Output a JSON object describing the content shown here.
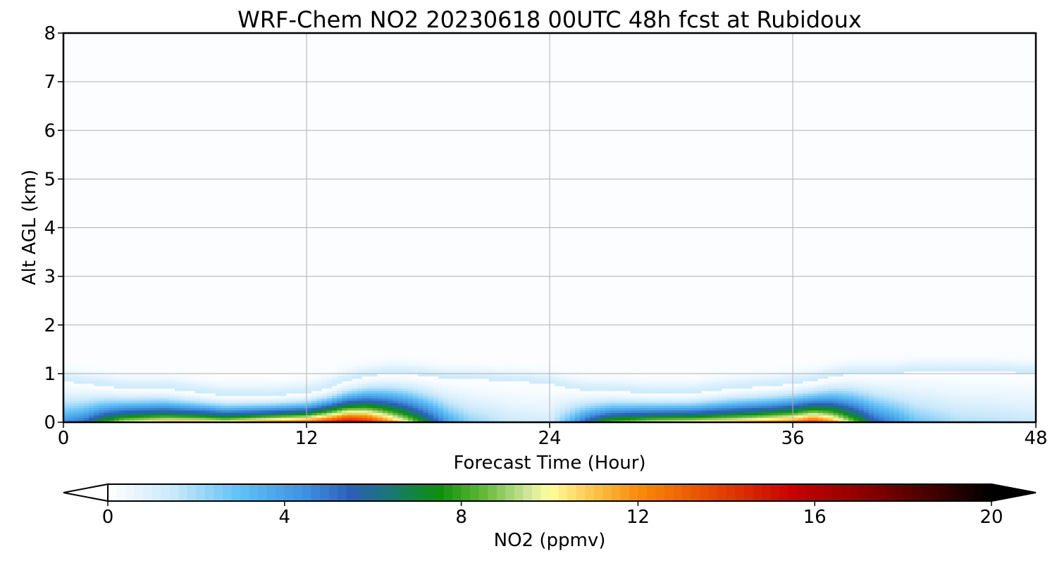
{
  "chart_data": {
    "type": "heatmap",
    "title": "WRF-Chem NO2  20230618 00UTC 48h fcst at Rubidoux",
    "xlabel": "Forecast Time (Hour)",
    "ylabel": "Alt AGL (km)",
    "xlim": [
      0,
      48
    ],
    "ylim": [
      0,
      8
    ],
    "xticks": [
      0,
      12,
      24,
      36,
      48
    ],
    "yticks": [
      0,
      1,
      2,
      3,
      4,
      5,
      6,
      7,
      8
    ],
    "grid": true,
    "background_value": 0.1,
    "field_profiles": [
      {
        "x": 0,
        "top": 0.85,
        "peak": 4.5
      },
      {
        "x": 1,
        "top": 0.8,
        "peak": 5.5
      },
      {
        "x": 2,
        "top": 0.75,
        "peak": 8.0
      },
      {
        "x": 3,
        "top": 0.7,
        "peak": 10.0
      },
      {
        "x": 5,
        "top": 0.7,
        "peak": 11.0
      },
      {
        "x": 7,
        "top": 0.6,
        "peak": 11.0
      },
      {
        "x": 8,
        "top": 0.55,
        "peak": 10.5
      },
      {
        "x": 10,
        "top": 0.55,
        "peak": 12.0
      },
      {
        "x": 12,
        "top": 0.6,
        "peak": 13.0
      },
      {
        "x": 13,
        "top": 0.7,
        "peak": 14.5
      },
      {
        "x": 14,
        "top": 0.85,
        "peak": 16.0
      },
      {
        "x": 15,
        "top": 0.95,
        "peak": 15.0
      },
      {
        "x": 16,
        "top": 1.0,
        "peak": 12.5
      },
      {
        "x": 17,
        "top": 1.0,
        "peak": 10.0
      },
      {
        "x": 18,
        "top": 0.95,
        "peak": 7.0
      },
      {
        "x": 19,
        "top": 0.9,
        "peak": 4.0
      },
      {
        "x": 20,
        "top": 0.9,
        "peak": 2.5
      },
      {
        "x": 22,
        "top": 0.85,
        "peak": 1.5
      },
      {
        "x": 24,
        "top": 0.8,
        "peak": 1.2
      },
      {
        "x": 25,
        "top": 0.7,
        "peak": 3.5
      },
      {
        "x": 26,
        "top": 0.65,
        "peak": 6.5
      },
      {
        "x": 27,
        "top": 0.65,
        "peak": 8.5
      },
      {
        "x": 29,
        "top": 0.6,
        "peak": 10.0
      },
      {
        "x": 31,
        "top": 0.6,
        "peak": 10.5
      },
      {
        "x": 33,
        "top": 0.7,
        "peak": 11.0
      },
      {
        "x": 35,
        "top": 0.75,
        "peak": 12.0
      },
      {
        "x": 36,
        "top": 0.8,
        "peak": 12.5
      },
      {
        "x": 37,
        "top": 0.85,
        "peak": 14.0
      },
      {
        "x": 38,
        "top": 0.95,
        "peak": 12.0
      },
      {
        "x": 39,
        "top": 1.0,
        "peak": 9.0
      },
      {
        "x": 40,
        "top": 1.0,
        "peak": 6.0
      },
      {
        "x": 41,
        "top": 1.0,
        "peak": 4.5
      },
      {
        "x": 42,
        "top": 1.05,
        "peak": 3.0
      },
      {
        "x": 44,
        "top": 1.05,
        "peak": 2.0
      },
      {
        "x": 46,
        "top": 1.05,
        "peak": 1.8
      },
      {
        "x": 48,
        "top": 1.0,
        "peak": 1.5
      }
    ],
    "colorbar": {
      "label": "NO2  (ppmv)",
      "min": 0,
      "max": 20,
      "ticks": [
        0,
        4,
        8,
        12,
        16,
        20
      ],
      "extend": "both",
      "stops": [
        {
          "v": 0,
          "c": "#ffffff"
        },
        {
          "v": 1.5,
          "c": "#c8e8fb"
        },
        {
          "v": 3,
          "c": "#5fc0f5"
        },
        {
          "v": 4.5,
          "c": "#3f8fe0"
        },
        {
          "v": 5.5,
          "c": "#2d5fb8"
        },
        {
          "v": 6.5,
          "c": "#177a6a"
        },
        {
          "v": 7.5,
          "c": "#0e8f0e"
        },
        {
          "v": 8.5,
          "c": "#63b83a"
        },
        {
          "v": 9.5,
          "c": "#cfe69a"
        },
        {
          "v": 10,
          "c": "#ffff9e"
        },
        {
          "v": 11,
          "c": "#fcc34c"
        },
        {
          "v": 12,
          "c": "#f78c0a"
        },
        {
          "v": 14,
          "c": "#e33b00"
        },
        {
          "v": 15.5,
          "c": "#c80000"
        },
        {
          "v": 17,
          "c": "#900000"
        },
        {
          "v": 18.5,
          "c": "#4a0000"
        },
        {
          "v": 20,
          "c": "#000000"
        }
      ]
    }
  }
}
